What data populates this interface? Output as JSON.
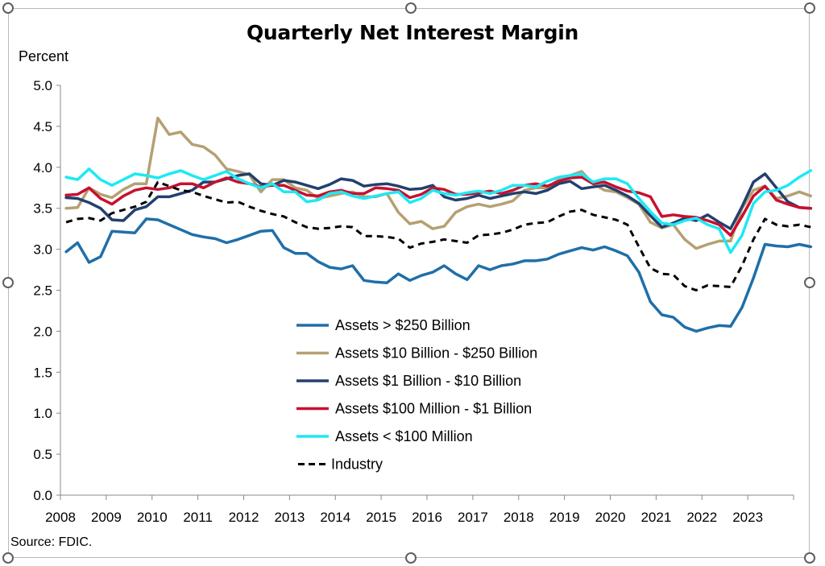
{
  "source": "Source: FDIC.",
  "chart_data": {
    "type": "line",
    "title": "Quarterly Net Interest Margin",
    "ylabel": "Percent",
    "xlabel": "",
    "ylim": [
      0,
      5
    ],
    "yticks": [
      "0.0",
      "0.5",
      "1.0",
      "1.5",
      "2.0",
      "2.5",
      "3.0",
      "3.5",
      "4.0",
      "4.5",
      "5.0"
    ],
    "xtick_labels": [
      "2008",
      "2009",
      "2010",
      "2011",
      "2012",
      "2013",
      "2014",
      "2015",
      "2016",
      "2017",
      "2018",
      "2019",
      "2020",
      "2021",
      "2022",
      "2023"
    ],
    "grid": false,
    "legend_position": "center",
    "series": [
      {
        "name": "Assets > $250 Billion",
        "color": "#1f6fa8",
        "style": "solid",
        "values": [
          2.97,
          3.08,
          2.84,
          2.91,
          3.22,
          3.21,
          3.2,
          3.37,
          3.36,
          3.3,
          3.24,
          3.18,
          3.15,
          3.13,
          3.08,
          3.12,
          3.17,
          3.22,
          3.23,
          3.02,
          2.95,
          2.95,
          2.85,
          2.78,
          2.76,
          2.8,
          2.62,
          2.6,
          2.59,
          2.7,
          2.62,
          2.68,
          2.72,
          2.8,
          2.7,
          2.63,
          2.8,
          2.75,
          2.8,
          2.82,
          2.86,
          2.86,
          2.88,
          2.94,
          2.98,
          3.02,
          2.99,
          3.03,
          2.98,
          2.92,
          2.72,
          2.36,
          2.2,
          2.17,
          2.05,
          2.0,
          2.04,
          2.07,
          2.06,
          2.29,
          2.65,
          3.06,
          3.04,
          3.03,
          3.06,
          3.03
        ]
      },
      {
        "name": "Assets  $10 Billion - $250 Billion",
        "color": "#b5a072",
        "style": "solid",
        "values": [
          3.5,
          3.51,
          3.75,
          3.67,
          3.63,
          3.73,
          3.8,
          3.8,
          4.6,
          4.4,
          4.43,
          4.28,
          4.25,
          4.15,
          3.98,
          3.95,
          3.91,
          3.7,
          3.85,
          3.85,
          3.75,
          3.72,
          3.62,
          3.65,
          3.68,
          3.7,
          3.64,
          3.64,
          3.68,
          3.45,
          3.31,
          3.34,
          3.25,
          3.28,
          3.45,
          3.52,
          3.55,
          3.52,
          3.55,
          3.59,
          3.72,
          3.75,
          3.75,
          3.85,
          3.9,
          3.95,
          3.8,
          3.72,
          3.7,
          3.63,
          3.55,
          3.33,
          3.26,
          3.3,
          3.12,
          3.01,
          3.06,
          3.1,
          3.1,
          3.5,
          3.72,
          3.77,
          3.62,
          3.65,
          3.7,
          3.65
        ]
      },
      {
        "name": "Assets  $1 Billion - $10 Billion",
        "color": "#22406e",
        "style": "solid",
        "values": [
          3.63,
          3.62,
          3.57,
          3.5,
          3.36,
          3.35,
          3.48,
          3.52,
          3.64,
          3.64,
          3.68,
          3.72,
          3.82,
          3.82,
          3.86,
          3.9,
          3.92,
          3.8,
          3.78,
          3.84,
          3.82,
          3.78,
          3.74,
          3.79,
          3.86,
          3.84,
          3.77,
          3.79,
          3.8,
          3.77,
          3.73,
          3.74,
          3.78,
          3.64,
          3.6,
          3.62,
          3.66,
          3.62,
          3.65,
          3.68,
          3.7,
          3.68,
          3.72,
          3.8,
          3.83,
          3.74,
          3.76,
          3.78,
          3.72,
          3.65,
          3.56,
          3.41,
          3.27,
          3.32,
          3.38,
          3.35,
          3.42,
          3.33,
          3.25,
          3.52,
          3.82,
          3.92,
          3.75,
          3.58,
          3.51,
          3.5
        ]
      },
      {
        "name": "Assets  $100 Million - $1 Billion",
        "color": "#c8102e",
        "style": "solid",
        "values": [
          3.66,
          3.67,
          3.75,
          3.62,
          3.55,
          3.65,
          3.72,
          3.75,
          3.73,
          3.75,
          3.8,
          3.8,
          3.75,
          3.82,
          3.87,
          3.82,
          3.8,
          3.76,
          3.78,
          3.78,
          3.72,
          3.66,
          3.65,
          3.7,
          3.72,
          3.68,
          3.68,
          3.75,
          3.74,
          3.72,
          3.63,
          3.67,
          3.75,
          3.73,
          3.67,
          3.67,
          3.69,
          3.71,
          3.68,
          3.72,
          3.78,
          3.8,
          3.77,
          3.83,
          3.87,
          3.88,
          3.8,
          3.82,
          3.76,
          3.71,
          3.69,
          3.64,
          3.4,
          3.42,
          3.4,
          3.39,
          3.35,
          3.3,
          3.17,
          3.4,
          3.65,
          3.77,
          3.6,
          3.55,
          3.51,
          3.5
        ]
      },
      {
        "name": "Assets < $100 Million",
        "color": "#1de9f4",
        "style": "solid",
        "values": [
          3.88,
          3.85,
          3.98,
          3.85,
          3.78,
          3.85,
          3.92,
          3.9,
          3.87,
          3.92,
          3.96,
          3.9,
          3.85,
          3.9,
          3.95,
          3.86,
          3.8,
          3.75,
          3.8,
          3.7,
          3.7,
          3.58,
          3.6,
          3.68,
          3.7,
          3.65,
          3.62,
          3.65,
          3.68,
          3.7,
          3.57,
          3.62,
          3.72,
          3.68,
          3.66,
          3.69,
          3.71,
          3.68,
          3.72,
          3.78,
          3.78,
          3.76,
          3.83,
          3.88,
          3.9,
          3.92,
          3.82,
          3.86,
          3.86,
          3.8,
          3.62,
          3.46,
          3.32,
          3.3,
          3.35,
          3.38,
          3.3,
          3.25,
          2.96,
          3.17,
          3.56,
          3.7,
          3.72,
          3.78,
          3.88,
          3.96
        ]
      },
      {
        "name": "Industry",
        "color": "#000000",
        "style": "dashed",
        "values": [
          3.33,
          3.37,
          3.38,
          3.35,
          3.44,
          3.48,
          3.52,
          3.58,
          3.82,
          3.77,
          3.72,
          3.7,
          3.65,
          3.61,
          3.57,
          3.58,
          3.52,
          3.47,
          3.43,
          3.4,
          3.33,
          3.27,
          3.25,
          3.26,
          3.28,
          3.27,
          3.16,
          3.16,
          3.15,
          3.13,
          3.02,
          3.07,
          3.09,
          3.12,
          3.1,
          3.08,
          3.17,
          3.18,
          3.2,
          3.24,
          3.3,
          3.32,
          3.33,
          3.4,
          3.46,
          3.48,
          3.42,
          3.39,
          3.36,
          3.3,
          3.03,
          2.77,
          2.7,
          2.69,
          2.55,
          2.5,
          2.56,
          2.55,
          2.54,
          2.8,
          3.12,
          3.37,
          3.3,
          3.28,
          3.3,
          3.27
        ]
      }
    ]
  }
}
